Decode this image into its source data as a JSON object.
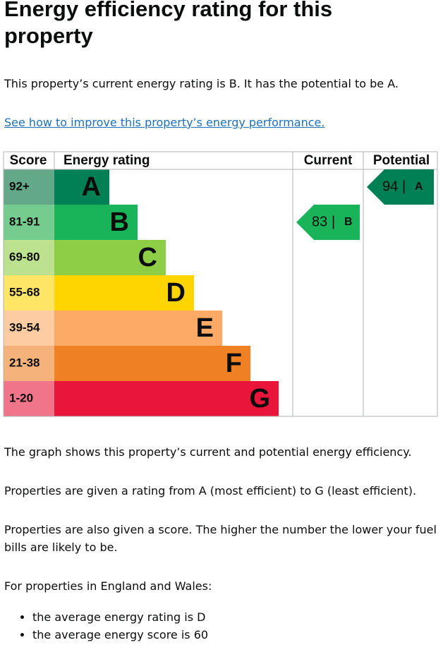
{
  "heading": "Energy efficiency rating for this property",
  "intro": "This property’s current energy rating is B. It has the potential to be A.",
  "link": "See how to improve this property’s energy performance.",
  "epc": {
    "headers": [
      "Score",
      "Energy rating",
      "Current",
      "Potential"
    ],
    "bands": [
      {
        "score": "92+",
        "letter": "A",
        "color": "#008054",
        "score_color": "#64a88a"
      },
      {
        "score": "81-91",
        "letter": "B",
        "color": "#19b459",
        "score_color": "#76cc8f"
      },
      {
        "score": "69-80",
        "letter": "C",
        "color": "#8dce46",
        "score_color": "#bde28f"
      },
      {
        "score": "55-68",
        "letter": "D",
        "color": "#ffd500",
        "score_color": "#ffe566"
      },
      {
        "score": "39-54",
        "letter": "E",
        "color": "#fcaa65",
        "score_color": "#fdcca2"
      },
      {
        "score": "21-38",
        "letter": "F",
        "color": "#ef8023",
        "score_color": "#f5b37b"
      },
      {
        "score": "1-20",
        "letter": "G",
        "color": "#e9153b",
        "score_color": "#f0758a"
      }
    ],
    "separator": "|",
    "current": {
      "score": 83,
      "letter": "B",
      "band": 1
    },
    "potential": {
      "score": 94,
      "letter": "A",
      "band": 0
    }
  },
  "paragraphs": [
    "The graph shows this property’s current and potential energy efficiency.",
    "Properties are given a rating from A (most efficient) to G (least efficient).",
    "Properties are also given a score. The higher the number the lower your fuel bills are likely to be.",
    "For properties in England and Wales:"
  ],
  "list": [
    "the average energy rating is D",
    "the average energy score is 60"
  ]
}
